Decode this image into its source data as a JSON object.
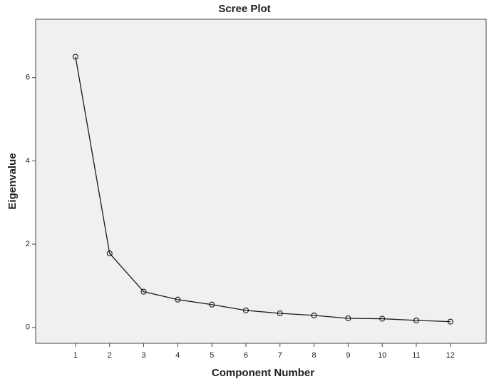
{
  "chart_data": {
    "type": "line",
    "title": "Scree Plot",
    "x_label": "Component Number",
    "y_label": "Eigenvalue",
    "x": [
      1,
      2,
      3,
      4,
      5,
      6,
      7,
      8,
      9,
      10,
      11,
      12
    ],
    "series": [
      {
        "name": "Eigenvalue",
        "color": "#1a1a1a",
        "values": [
          6.5,
          1.78,
          0.86,
          0.67,
          0.55,
          0.41,
          0.34,
          0.29,
          0.22,
          0.21,
          0.17,
          0.14
        ]
      }
    ],
    "xlim": [
      -0.17,
      13.05
    ],
    "xticks": [
      1,
      2,
      3,
      4,
      5,
      6,
      7,
      8,
      9,
      10,
      11,
      12
    ],
    "ylim": [
      -0.38,
      7.4
    ],
    "yticks": [
      0,
      2,
      4,
      6
    ],
    "grid": false
  }
}
